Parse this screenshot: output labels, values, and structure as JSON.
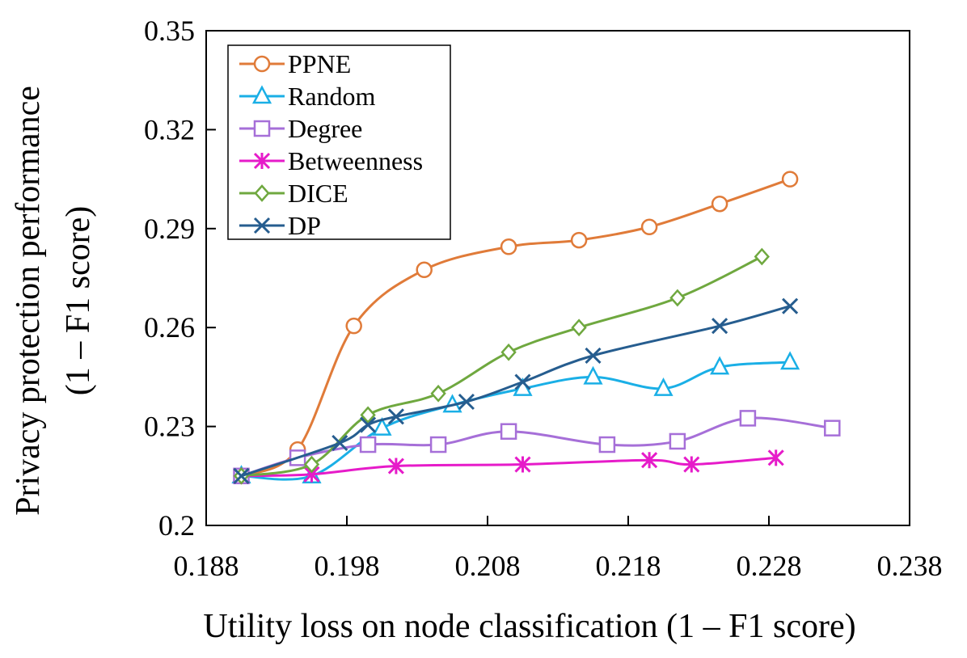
{
  "chart_data": {
    "type": "line",
    "title": "",
    "xlabel": "Utility loss on node classification (1 – F1 score)",
    "ylabel_line1": "Privacy protection performance",
    "ylabel_line2": "(1 – F1 score)",
    "xlim": [
      0.188,
      0.238
    ],
    "ylim": [
      0.2,
      0.35
    ],
    "xticks": [
      0.188,
      0.198,
      0.208,
      0.218,
      0.228,
      0.238
    ],
    "xtick_labels": [
      "0.188",
      "0.198",
      "0.208",
      "0.218",
      "0.228",
      "0.238"
    ],
    "yticks": [
      0.2,
      0.23,
      0.26,
      0.29,
      0.32,
      0.35
    ],
    "ytick_labels": [
      "0.2",
      "0.23",
      "0.26",
      "0.29",
      "0.32",
      "0.35"
    ],
    "grid": false,
    "legend_position": "top-left",
    "series": [
      {
        "name": "PPNE",
        "color": "#E07B39",
        "marker": "circle",
        "points": [
          [
            0.1905,
            0.215
          ],
          [
            0.1945,
            0.223
          ],
          [
            0.1985,
            0.2605
          ],
          [
            0.2035,
            0.2775
          ],
          [
            0.2095,
            0.2845
          ],
          [
            0.2145,
            0.2865
          ],
          [
            0.2195,
            0.2905
          ],
          [
            0.2245,
            0.2975
          ],
          [
            0.2295,
            0.305
          ]
        ]
      },
      {
        "name": "Random",
        "color": "#1AAFE6",
        "marker": "triangle",
        "points": [
          [
            0.1905,
            0.215
          ],
          [
            0.1955,
            0.215
          ],
          [
            0.2005,
            0.2295
          ],
          [
            0.2055,
            0.2365
          ],
          [
            0.2105,
            0.2415
          ],
          [
            0.2155,
            0.245
          ],
          [
            0.2205,
            0.2415
          ],
          [
            0.2245,
            0.248
          ],
          [
            0.2295,
            0.2495
          ]
        ]
      },
      {
        "name": "Degree",
        "color": "#A66FD8",
        "marker": "square",
        "points": [
          [
            0.1905,
            0.215
          ],
          [
            0.1945,
            0.2205
          ],
          [
            0.1995,
            0.2245
          ],
          [
            0.2045,
            0.2245
          ],
          [
            0.2095,
            0.2285
          ],
          [
            0.2165,
            0.2245
          ],
          [
            0.2215,
            0.2255
          ],
          [
            0.2265,
            0.2325
          ],
          [
            0.2325,
            0.2295
          ]
        ]
      },
      {
        "name": "Betweenness",
        "color": "#E61BC9",
        "marker": "asterisk",
        "points": [
          [
            0.1905,
            0.215
          ],
          [
            0.1955,
            0.2155
          ],
          [
            0.2015,
            0.218
          ],
          [
            0.2105,
            0.2185
          ],
          [
            0.2195,
            0.2198
          ],
          [
            0.2225,
            0.2185
          ],
          [
            0.2285,
            0.2205
          ]
        ]
      },
      {
        "name": "DICE",
        "color": "#6FA83F",
        "marker": "diamond",
        "points": [
          [
            0.1905,
            0.215
          ],
          [
            0.1955,
            0.2185
          ],
          [
            0.1995,
            0.2335
          ],
          [
            0.2045,
            0.24
          ],
          [
            0.2095,
            0.2525
          ],
          [
            0.2145,
            0.26
          ],
          [
            0.2215,
            0.269
          ],
          [
            0.2275,
            0.2815
          ]
        ]
      },
      {
        "name": "DP",
        "color": "#265D8F",
        "marker": "x",
        "points": [
          [
            0.1905,
            0.215
          ],
          [
            0.1975,
            0.225
          ],
          [
            0.1995,
            0.2305
          ],
          [
            0.2015,
            0.233
          ],
          [
            0.2065,
            0.2375
          ],
          [
            0.2105,
            0.2435
          ],
          [
            0.2155,
            0.2515
          ],
          [
            0.2245,
            0.2605
          ],
          [
            0.2295,
            0.2665
          ]
        ]
      }
    ]
  }
}
